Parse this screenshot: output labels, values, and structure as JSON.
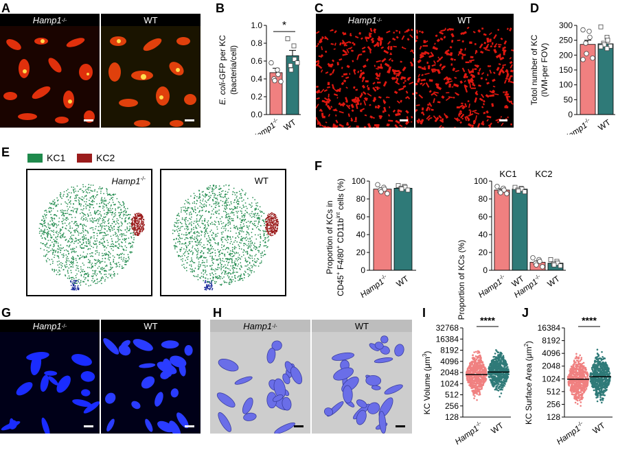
{
  "panels": {
    "A": {
      "letter": "A",
      "left_label": "Hamp1",
      "left_sup": "-/-",
      "right_label": "WT"
    },
    "B": {
      "letter": "B",
      "ylabel_italic": "E. coli",
      "ylabel_rest": "-GFP per KC",
      "ylabel2": "(bacteria/cell)",
      "sig": "*",
      "ticks": [
        "0.0",
        "0.2",
        "0.4",
        "0.6",
        "0.8",
        "1.0"
      ],
      "x1": "Hamp1",
      "x1_sup": "-/-",
      "x2": "WT"
    },
    "C": {
      "letter": "C",
      "left_label": "Hamp1",
      "left_sup": "-/-",
      "right_label": "WT"
    },
    "D": {
      "letter": "D",
      "ylabel": "Totol number of KC",
      "ylabel2": "(IVM-per FOV)",
      "ticks": [
        "0",
        "50",
        "100",
        "150",
        "200",
        "250",
        "300"
      ],
      "x1": "Hamp1",
      "x1_sup": "-/-",
      "x2": "WT"
    },
    "E": {
      "letter": "E",
      "legend1": "KC1",
      "legend2": "KC2",
      "left_label": "Hamp1",
      "left_sup": "-/-",
      "right_label": "WT"
    },
    "F": {
      "letter": "F",
      "ylabel_left_1": "Proportion of KCs in",
      "ylabel_left_2a": "CD45",
      "ylabel_left_2b": "F4/80",
      "ylabel_left_2c": "CD11b",
      "ylabel_left_2d": "int",
      "ylabel_left_2e": "cells (%)",
      "ylabel_right": "Proportion of KCs (%)",
      "group1": "KC1",
      "group2": "KC2",
      "ticks": [
        "0",
        "20",
        "40",
        "60",
        "80",
        "100"
      ],
      "x1": "Hamp1",
      "x1_sup": "-/-",
      "x2": "WT"
    },
    "G": {
      "letter": "G",
      "left_label": "Hamp1",
      "left_sup": "-/-",
      "right_label": "WT"
    },
    "H": {
      "letter": "H",
      "left_label": "Hamp1",
      "left_sup": "-/-",
      "right_label": "WT"
    },
    "I": {
      "letter": "I",
      "ylabel": "KC Volume (μm",
      "ylabel_sup": "3",
      "ylabel_end": ")",
      "sig": "****",
      "ticks": [
        "128",
        "256",
        "512",
        "1024",
        "2048",
        "4096",
        "8192",
        "16384",
        "32768"
      ],
      "x1": "Hamp1",
      "x1_sup": "-/-",
      "x2": "WT"
    },
    "J": {
      "letter": "J",
      "ylabel": "KC Surface Area (μm",
      "ylabel_sup": "2",
      "ylabel_end": ")",
      "sig": "****",
      "ticks": [
        "128",
        "256",
        "512",
        "1024",
        "2048",
        "4096",
        "8192",
        "16384"
      ],
      "x1": "Hamp1",
      "x1_sup": "-/-",
      "x2": "WT"
    }
  },
  "colors": {
    "hamp": "#f08080",
    "wt": "#2f7a78",
    "kc1": "#1f8a4c",
    "kc2": "#9b1c1c"
  },
  "chart_data": [
    {
      "panel": "B",
      "type": "bar",
      "categories": [
        "Hamp1-/-",
        "WT"
      ],
      "values": [
        0.47,
        0.66
      ],
      "errors": [
        0.05,
        0.06
      ],
      "ylim": [
        0,
        1.0
      ],
      "points": [
        [
          0.58,
          0.5,
          0.45,
          0.4,
          0.38,
          0.37
        ],
        [
          0.85,
          0.77,
          0.62,
          0.55,
          0.5,
          0.58
        ]
      ]
    },
    {
      "panel": "D",
      "type": "bar",
      "categories": [
        "Hamp1-/-",
        "WT"
      ],
      "values": [
        236,
        238
      ],
      "errors": [
        14,
        7
      ],
      "ylim": [
        0,
        300
      ],
      "points": [
        [
          285,
          280,
          260,
          240,
          205,
          190,
          185
        ],
        [
          295,
          260,
          250,
          240,
          235,
          230,
          228,
          222
        ]
      ]
    },
    {
      "panel": "F-left",
      "type": "bar",
      "categories": [
        "Hamp1-/-",
        "WT"
      ],
      "values": [
        91,
        92
      ],
      "errors": [
        1.5,
        1
      ],
      "ylim": [
        0,
        100
      ],
      "points": [
        [
          96,
          93,
          91,
          90,
          88,
          86
        ],
        [
          95,
          94,
          93,
          92,
          91,
          90
        ]
      ]
    },
    {
      "panel": "F-right",
      "type": "bar",
      "categories": [
        "KC1 Hamp1-/-",
        "KC1 WT",
        "KC2 Hamp1-/-",
        "KC2 WT"
      ],
      "values": [
        90,
        91,
        9,
        8
      ],
      "errors": [
        1.5,
        1,
        1.5,
        1
      ],
      "ylim": [
        0,
        100
      ],
      "points": [
        [
          94,
          92,
          90,
          88,
          87,
          86
        ],
        [
          93,
          92,
          91,
          90,
          89,
          88
        ],
        [
          14,
          12,
          10,
          8,
          6,
          4
        ],
        [
          12,
          10,
          8,
          7,
          6,
          5
        ]
      ]
    },
    {
      "panel": "I",
      "type": "scatter",
      "categories": [
        "Hamp1-/-",
        "WT"
      ],
      "median": [
        1800,
        2100
      ],
      "ylim": [
        128,
        32768
      ],
      "scale": "log2"
    },
    {
      "panel": "J",
      "type": "scatter",
      "categories": [
        "Hamp1-/-",
        "WT"
      ],
      "median": [
        1000,
        1150
      ],
      "ylim": [
        128,
        16384
      ],
      "scale": "log2"
    }
  ]
}
